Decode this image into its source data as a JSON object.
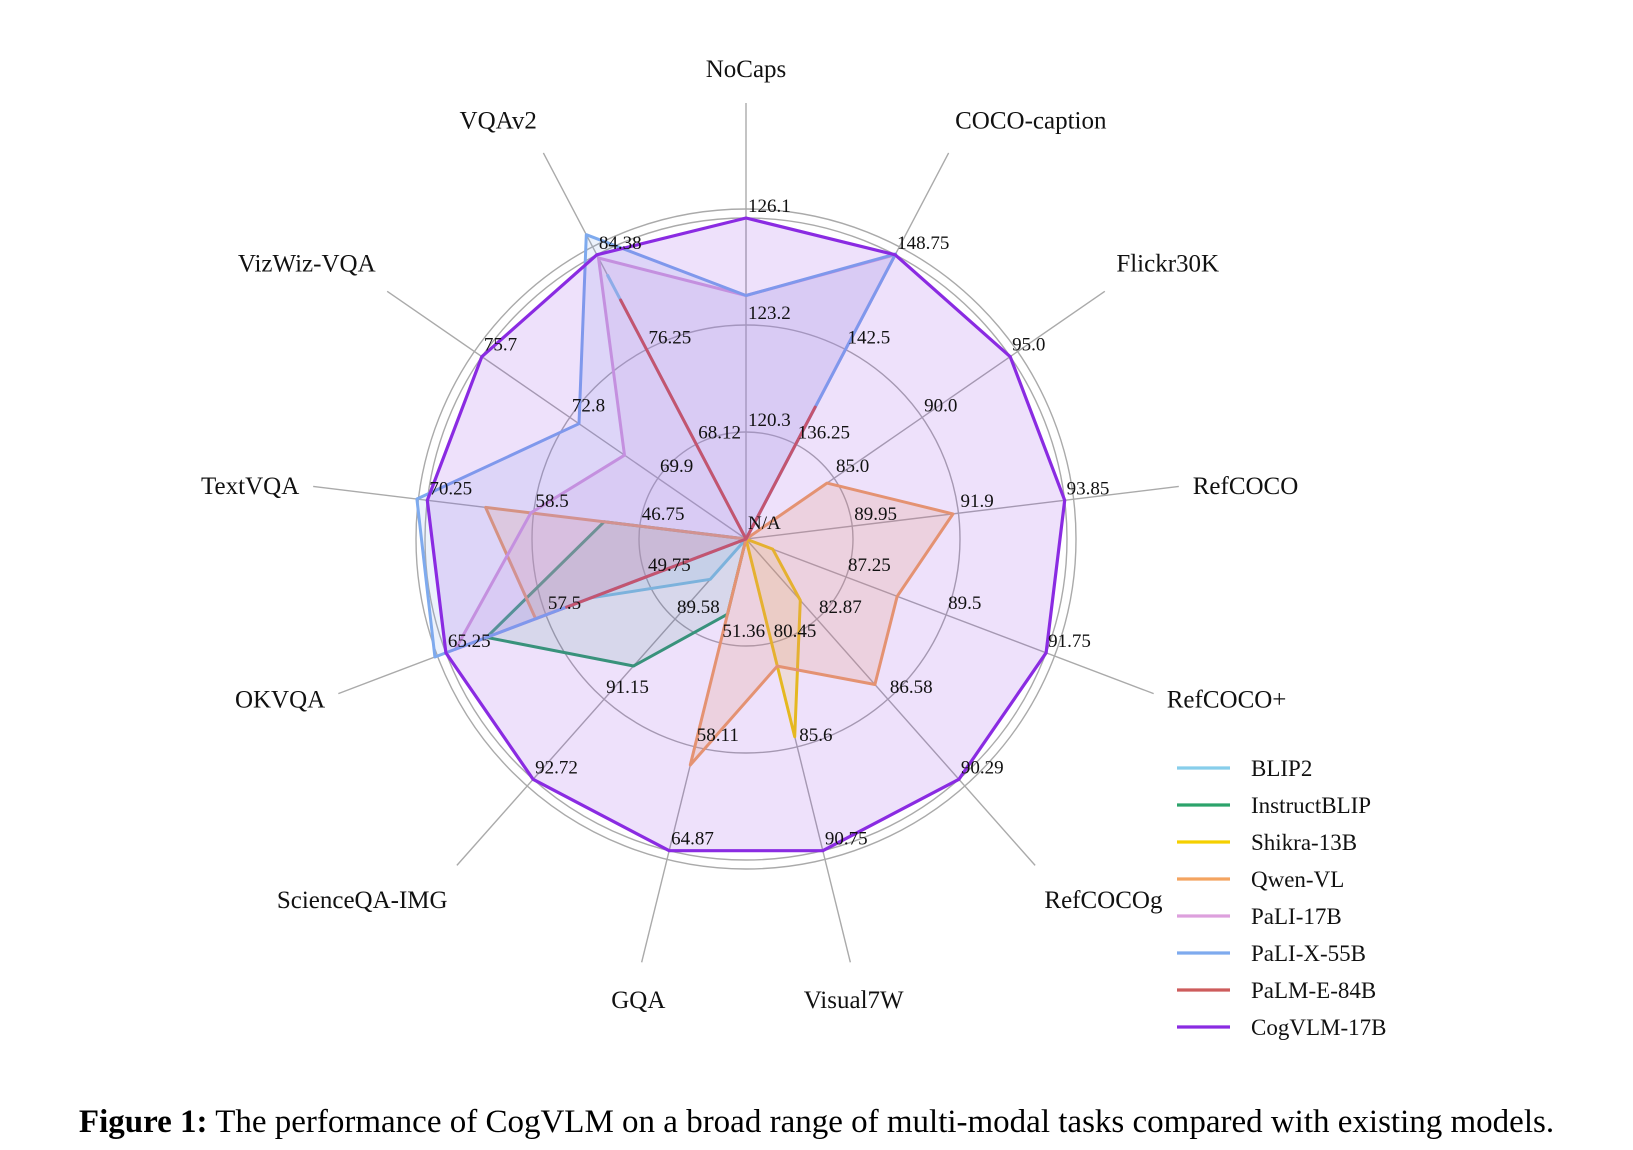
{
  "caption": {
    "label": "Figure 1:",
    "text": "The performance of CogVLM on a broad range of multi-modal tasks compared with existing models."
  },
  "chart_data": {
    "type": "radar",
    "center_label": "N/A",
    "axes": [
      {
        "name": "NoCaps",
        "ticks": [
          "120.3",
          "123.2",
          "126.1"
        ]
      },
      {
        "name": "COCO-caption",
        "ticks": [
          "136.25",
          "142.5",
          "148.75"
        ]
      },
      {
        "name": "Flickr30K",
        "ticks": [
          "85.0",
          "90.0",
          "95.0"
        ]
      },
      {
        "name": "RefCOCO",
        "ticks": [
          "89.95",
          "91.9",
          "93.85"
        ]
      },
      {
        "name": "RefCOCO+",
        "ticks": [
          "87.25",
          "89.5",
          "91.75"
        ]
      },
      {
        "name": "RefCOCOg",
        "ticks": [
          "82.87",
          "86.58",
          "90.29"
        ]
      },
      {
        "name": "Visual7W",
        "ticks": [
          "80.45",
          "85.6",
          "90.75"
        ]
      },
      {
        "name": "GQA",
        "ticks": [
          "51.36",
          "58.11",
          "64.87"
        ]
      },
      {
        "name": "ScienceQA-IMG",
        "ticks": [
          "89.58",
          "91.15",
          "92.72"
        ]
      },
      {
        "name": "OKVQA",
        "ticks": [
          "49.75",
          "57.5",
          "65.25"
        ]
      },
      {
        "name": "TextVQA",
        "ticks": [
          "46.75",
          "58.5",
          "70.25"
        ]
      },
      {
        "name": "VizWiz-VQA",
        "ticks": [
          "69.9",
          "72.8",
          "75.7"
        ]
      },
      {
        "name": "VQAv2",
        "ticks": [
          "68.12",
          "76.25",
          "84.38"
        ]
      }
    ],
    "series": [
      {
        "name": "BLIP2",
        "color": "#87ceeb",
        "fill_opacity": 0.18,
        "values": [
          null,
          null,
          null,
          null,
          null,
          null,
          null,
          null,
          88.8,
          54.0,
          null,
          null,
          82.6
        ]
      },
      {
        "name": "InstructBLIP",
        "color": "#2ca36b",
        "fill_opacity": 0.12,
        "values": [
          null,
          null,
          null,
          null,
          null,
          null,
          null,
          49.5,
          90.5,
          62.1,
          50.7,
          null,
          null
        ]
      },
      {
        "name": "Shikra-13B",
        "color": "#f5d000",
        "fill_opacity": 0.14,
        "values": [
          null,
          null,
          null,
          87.8,
          85.6,
          82.0,
          85.1,
          null,
          null,
          null,
          null,
          null,
          null
        ]
      },
      {
        "name": "Qwen-VL",
        "color": "#f4a460",
        "fill_opacity": 0.2,
        "values": [
          null,
          null,
          84.6,
          91.8,
          88.4,
          85.9,
          81.6,
          59.3,
          null,
          58.3,
          63.8,
          null,
          null
        ]
      },
      {
        "name": "PaLI-17B",
        "color": "#dda0dd",
        "fill_opacity": 0.15,
        "values": [
          124.0,
          148.75,
          null,
          null,
          null,
          null,
          null,
          null,
          null,
          64.5,
          58.8,
          71.0,
          84.1
        ]
      },
      {
        "name": "PaLI-X-55B",
        "color": "#7eaaee",
        "fill_opacity": 0.15,
        "values": [
          124.0,
          148.8,
          null,
          null,
          null,
          null,
          null,
          null,
          null,
          66.1,
          71.4,
          72.5,
          86.1
        ]
      },
      {
        "name": "PaLM-E-84B",
        "color": "#cd5c5c",
        "fill_opacity": 0.08,
        "values": [
          null,
          138.7,
          null,
          null,
          null,
          null,
          null,
          null,
          null,
          55.9,
          null,
          null,
          80.5
        ]
      },
      {
        "name": "CogVLM-17B",
        "color": "#8a2be2",
        "fill_opacity": 0.14,
        "values": [
          126.1,
          148.75,
          95.0,
          93.85,
          91.75,
          90.29,
          90.75,
          64.87,
          92.72,
          65.25,
          70.25,
          75.7,
          84.38
        ]
      }
    ],
    "legend_position": "bottom-right"
  }
}
